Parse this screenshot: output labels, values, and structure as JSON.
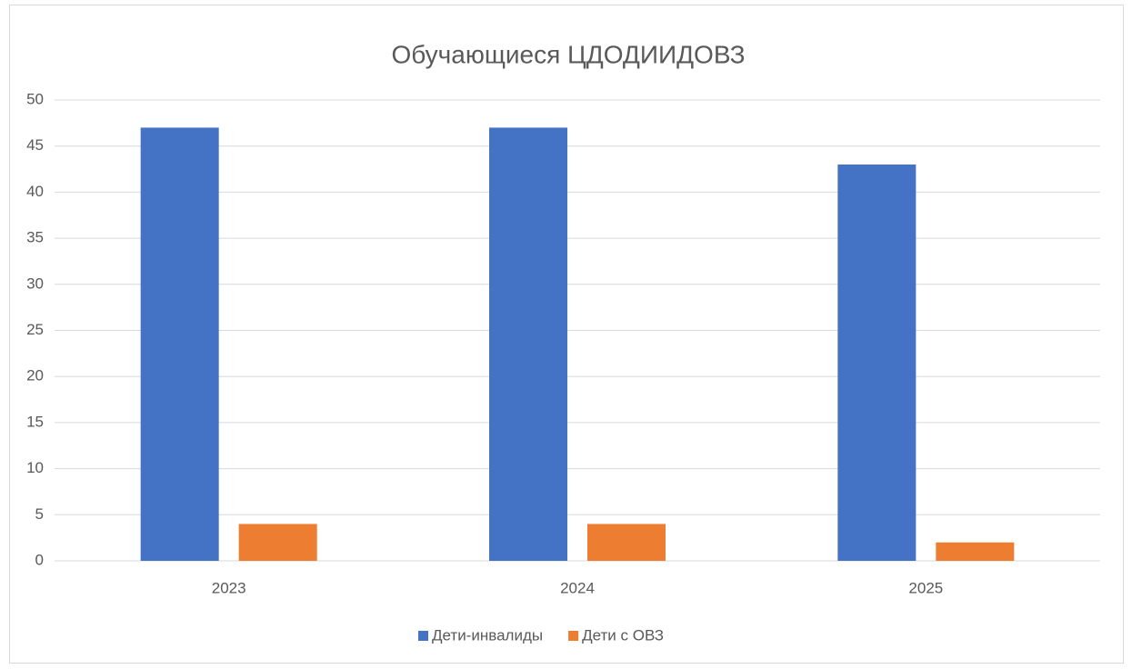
{
  "chart_data": {
    "type": "bar",
    "title": "Обучающиеся ЦДОДИИДОВЗ",
    "categories": [
      "2023",
      "2024",
      "2025"
    ],
    "series": [
      {
        "name": "Дети-инвалиды",
        "color": "#4472c4",
        "values": [
          47,
          47,
          43
        ]
      },
      {
        "name": "Дети с ОВЗ",
        "color": "#ed7d31",
        "values": [
          4,
          4,
          2
        ]
      }
    ],
    "ylim": [
      0,
      50
    ],
    "yticks": [
      0,
      5,
      10,
      15,
      20,
      25,
      30,
      35,
      40,
      45,
      50
    ],
    "grid": true,
    "legend": "bottom"
  }
}
